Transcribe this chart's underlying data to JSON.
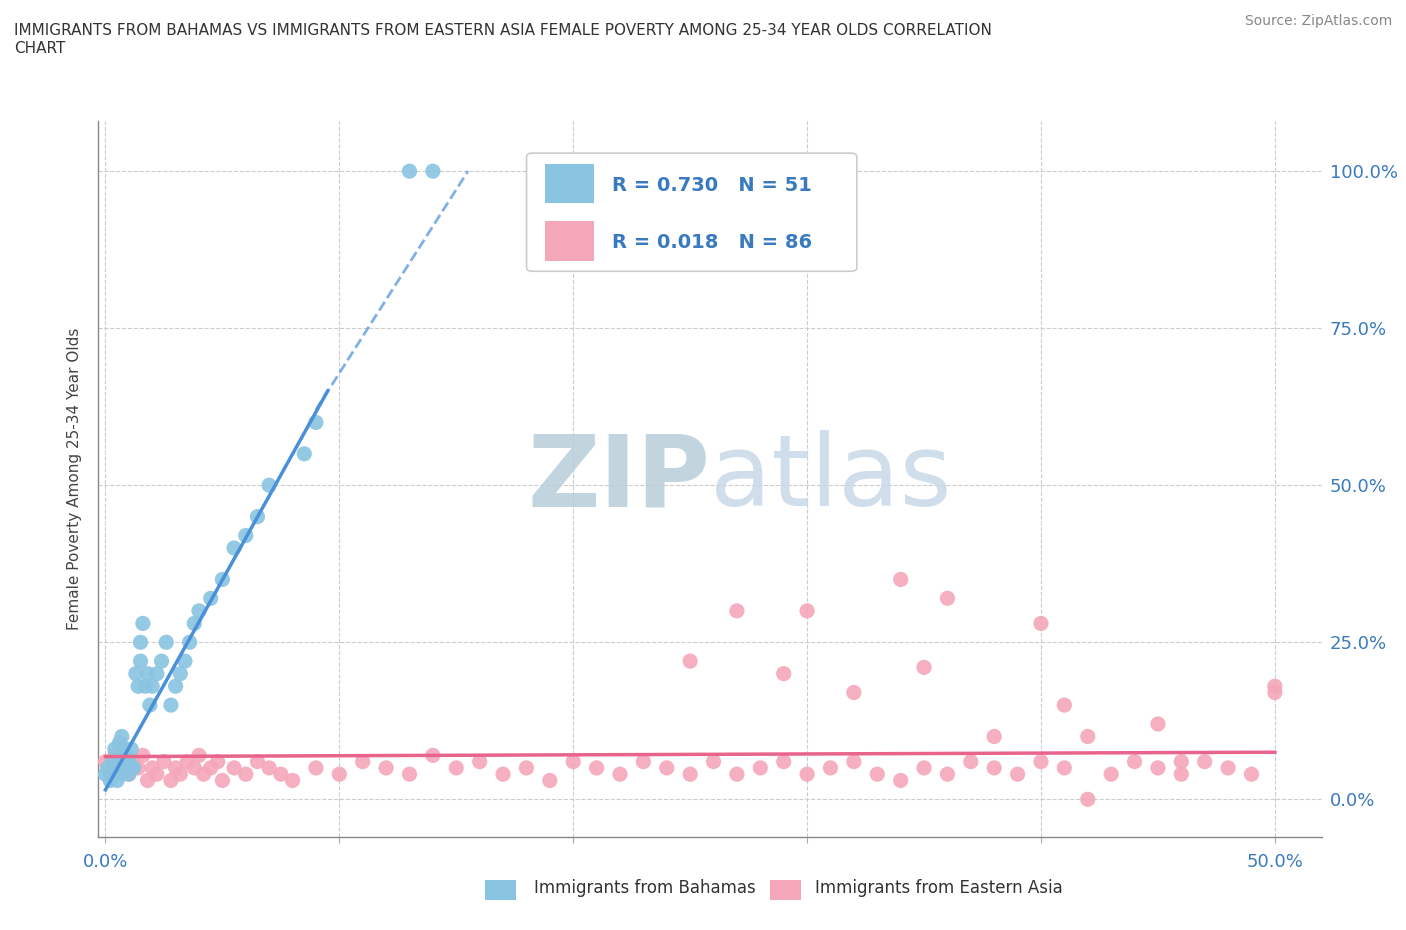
{
  "title": "IMMIGRANTS FROM BAHAMAS VS IMMIGRANTS FROM EASTERN ASIA FEMALE POVERTY AMONG 25-34 YEAR OLDS CORRELATION\nCHART",
  "source": "Source: ZipAtlas.com",
  "xlabel_bottom_left": "0.0%",
  "xlabel_bottom_right": "50.0%",
  "ylabel": "Female Poverty Among 25-34 Year Olds",
  "yticks": [
    "0.0%",
    "25.0%",
    "50.0%",
    "75.0%",
    "100.0%"
  ],
  "ytick_vals": [
    0.0,
    0.25,
    0.5,
    0.75,
    1.0
  ],
  "xtick_vals": [
    0.0,
    0.1,
    0.2,
    0.3,
    0.4,
    0.5
  ],
  "legend_label1": "Immigrants from Bahamas",
  "legend_label2": "Immigrants from Eastern Asia",
  "r1": "0.730",
  "n1": "51",
  "r2": "0.018",
  "n2": "86",
  "color1": "#89c4e1",
  "color2": "#f4a7b9",
  "trendline1_color": "#4a90d9",
  "trendline2_color": "#e8648a",
  "watermark_zip": "ZIP",
  "watermark_atlas": "atlas",
  "watermark_color": "#c8d8e8",
  "background_color": "#ffffff",
  "xlim": [
    -0.003,
    0.52
  ],
  "ylim": [
    -0.06,
    1.08
  ],
  "bahamas_x": [
    0.0,
    0.001,
    0.002,
    0.003,
    0.003,
    0.004,
    0.004,
    0.005,
    0.005,
    0.006,
    0.006,
    0.007,
    0.007,
    0.008,
    0.008,
    0.009,
    0.009,
    0.01,
    0.01,
    0.011,
    0.011,
    0.012,
    0.013,
    0.014,
    0.015,
    0.015,
    0.016,
    0.017,
    0.018,
    0.019,
    0.02,
    0.022,
    0.024,
    0.026,
    0.028,
    0.03,
    0.032,
    0.034,
    0.036,
    0.038,
    0.04,
    0.045,
    0.05,
    0.055,
    0.06,
    0.065,
    0.07,
    0.085,
    0.09,
    0.13,
    0.14
  ],
  "bahamas_y": [
    0.04,
    0.05,
    0.03,
    0.06,
    0.04,
    0.08,
    0.05,
    0.07,
    0.03,
    0.05,
    0.09,
    0.04,
    0.1,
    0.06,
    0.08,
    0.05,
    0.07,
    0.04,
    0.06,
    0.05,
    0.08,
    0.05,
    0.2,
    0.18,
    0.22,
    0.25,
    0.28,
    0.18,
    0.2,
    0.15,
    0.18,
    0.2,
    0.22,
    0.25,
    0.15,
    0.18,
    0.2,
    0.22,
    0.25,
    0.28,
    0.3,
    0.32,
    0.35,
    0.4,
    0.42,
    0.45,
    0.5,
    0.55,
    0.6,
    1.0,
    1.0
  ],
  "bahamas_trendline_x": [
    0.0,
    0.14
  ],
  "bahamas_trendline_y": [
    0.015,
    0.88
  ],
  "eastern_asia_x": [
    0.0,
    0.002,
    0.004,
    0.006,
    0.008,
    0.01,
    0.012,
    0.014,
    0.016,
    0.018,
    0.02,
    0.022,
    0.025,
    0.028,
    0.03,
    0.032,
    0.035,
    0.038,
    0.04,
    0.042,
    0.045,
    0.048,
    0.05,
    0.055,
    0.06,
    0.065,
    0.07,
    0.075,
    0.08,
    0.09,
    0.1,
    0.11,
    0.12,
    0.13,
    0.14,
    0.15,
    0.16,
    0.17,
    0.18,
    0.19,
    0.2,
    0.21,
    0.22,
    0.23,
    0.24,
    0.25,
    0.26,
    0.27,
    0.28,
    0.29,
    0.3,
    0.31,
    0.32,
    0.33,
    0.34,
    0.35,
    0.36,
    0.37,
    0.38,
    0.39,
    0.4,
    0.41,
    0.42,
    0.43,
    0.44,
    0.45,
    0.46,
    0.47,
    0.48,
    0.49,
    0.5,
    0.35,
    0.41,
    0.45,
    0.29,
    0.32,
    0.38,
    0.42,
    0.46,
    0.5,
    0.25,
    0.27,
    0.3,
    0.34,
    0.36,
    0.4
  ],
  "eastern_asia_y": [
    0.06,
    0.04,
    0.07,
    0.05,
    0.08,
    0.04,
    0.06,
    0.05,
    0.07,
    0.03,
    0.05,
    0.04,
    0.06,
    0.03,
    0.05,
    0.04,
    0.06,
    0.05,
    0.07,
    0.04,
    0.05,
    0.06,
    0.03,
    0.05,
    0.04,
    0.06,
    0.05,
    0.04,
    0.03,
    0.05,
    0.04,
    0.06,
    0.05,
    0.04,
    0.07,
    0.05,
    0.06,
    0.04,
    0.05,
    0.03,
    0.06,
    0.05,
    0.04,
    0.06,
    0.05,
    0.04,
    0.06,
    0.04,
    0.05,
    0.06,
    0.04,
    0.05,
    0.06,
    0.04,
    0.03,
    0.05,
    0.04,
    0.06,
    0.05,
    0.04,
    0.06,
    0.05,
    0.0,
    0.04,
    0.06,
    0.05,
    0.04,
    0.06,
    0.05,
    0.04,
    0.17,
    0.21,
    0.15,
    0.12,
    0.2,
    0.17,
    0.1,
    0.1,
    0.06,
    0.18,
    0.22,
    0.3,
    0.3,
    0.35,
    0.32,
    0.28
  ],
  "eastern_trendline_x": [
    0.0,
    0.5
  ],
  "eastern_trendline_y": [
    0.068,
    0.075
  ]
}
